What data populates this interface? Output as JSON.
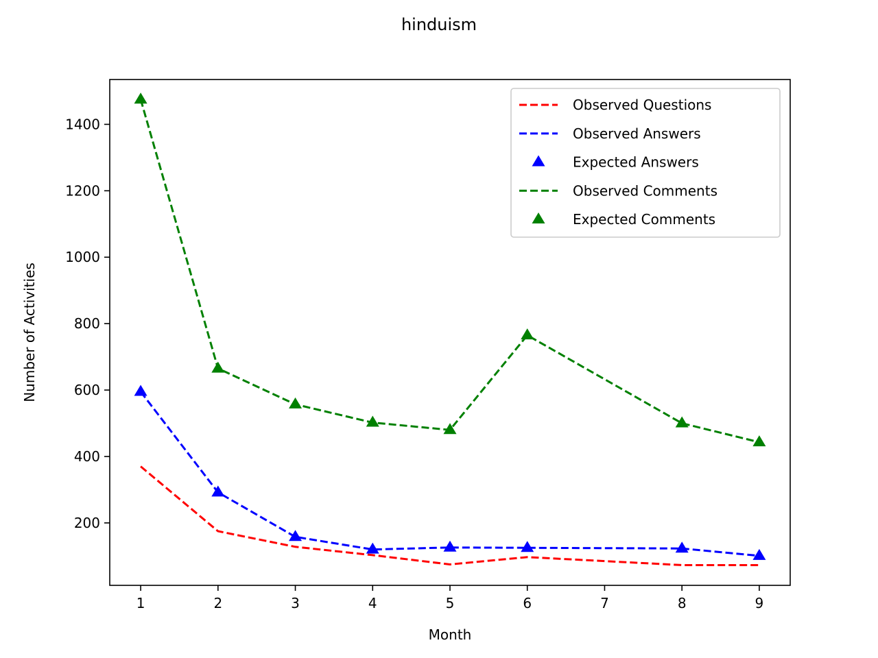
{
  "chart_data": {
    "type": "line",
    "title": "hinduism",
    "xlabel": "Month",
    "ylabel": "Number of Activities",
    "xlim": [
      0.6,
      9.4
    ],
    "ylim": [
      12,
      1535
    ],
    "xticks": [
      1,
      2,
      3,
      4,
      5,
      6,
      7,
      8,
      9
    ],
    "yticks": [
      200,
      400,
      600,
      800,
      1000,
      1200,
      1400
    ],
    "grid": false,
    "legend_position": "top-right",
    "series": [
      {
        "name": "Observed Questions",
        "kind": "line",
        "dash": "dashed",
        "color": "#ff0000",
        "x": [
          1,
          2,
          3,
          4,
          5,
          6,
          8,
          9
        ],
        "values": [
          370,
          175,
          128,
          103,
          75,
          97,
          73,
          73
        ]
      },
      {
        "name": "Observed Answers",
        "kind": "line",
        "dash": "dashed",
        "color": "#0000ff",
        "x": [
          1,
          2,
          3,
          4,
          5,
          6,
          8,
          9
        ],
        "values": [
          595,
          292,
          158,
          120,
          126,
          125,
          123,
          101
        ]
      },
      {
        "name": "Expected Answers",
        "kind": "marker",
        "marker": "triangle-up",
        "color": "#0000ff",
        "x": [
          1,
          2,
          3,
          4,
          5,
          6,
          8,
          9
        ],
        "values": [
          595,
          292,
          158,
          120,
          126,
          125,
          123,
          101
        ]
      },
      {
        "name": "Observed Comments",
        "kind": "line",
        "dash": "dashed",
        "color": "#008000",
        "x": [
          1,
          2,
          3,
          4,
          5,
          6,
          8,
          9
        ],
        "values": [
          1475,
          665,
          557,
          502,
          480,
          765,
          500,
          443
        ]
      },
      {
        "name": "Expected Comments",
        "kind": "marker",
        "marker": "triangle-up",
        "color": "#008000",
        "x": [
          1,
          2,
          3,
          4,
          5,
          6,
          8,
          9
        ],
        "values": [
          1475,
          665,
          557,
          502,
          480,
          765,
          500,
          443
        ]
      }
    ]
  }
}
